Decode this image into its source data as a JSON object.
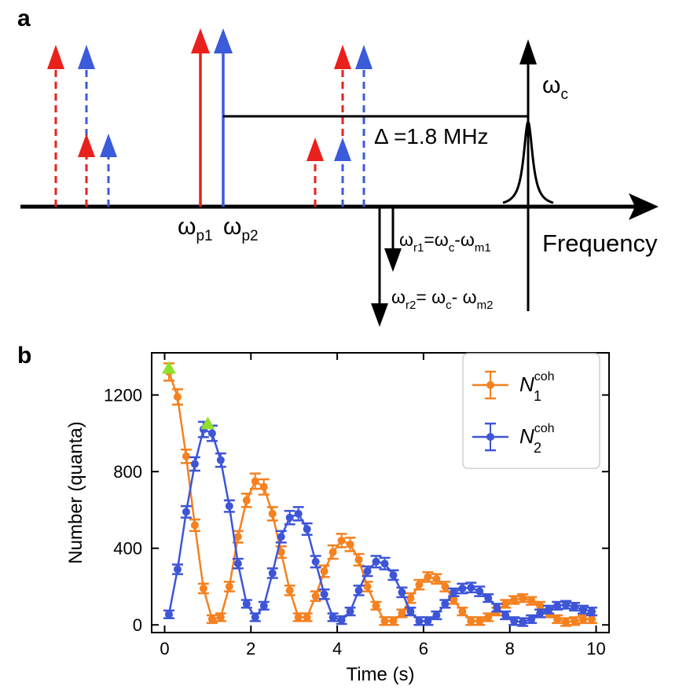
{
  "panel_a": {
    "label": "a",
    "axis_label": "Frequency",
    "cavity_label": "ω",
    "cavity_sub": "c",
    "pump1": "ω",
    "pump1_sub": "p1",
    "pump2": "ω",
    "pump2_sub": "p2",
    "detuning": "Δ =1.8 MHz",
    "r1_pre": "ω",
    "r1_sub": "r1",
    "r1_mid": "=ω",
    "r1_sub2": "c",
    "r1_mid2": "-ω",
    "r1_sub3": "m1",
    "r2_pre": "ω",
    "r2_sub": "r2",
    "r2_mid": "= ω",
    "r2_sub2": "c",
    "r2_mid2": "- ω",
    "r2_sub3": "m2",
    "colors": {
      "red": "#e8211c",
      "blue": "#3b5bdb",
      "black": "#000000"
    }
  },
  "panel_b": {
    "label": "b"
  },
  "chart_data": {
    "type": "line",
    "xlabel": "Time (s)",
    "ylabel": "Number (quanta)",
    "xlim": [
      -0.3,
      10.3
    ],
    "ylim": [
      -40,
      1420
    ],
    "xticks": [
      0,
      2,
      4,
      6,
      8,
      10
    ],
    "yticks": [
      0,
      400,
      800,
      1200
    ],
    "legend_position": "top-right",
    "series": [
      {
        "name": "N",
        "sub": "1",
        "sup": "coh",
        "color": "#f5811f",
        "x": [
          0.1,
          0.3,
          0.5,
          0.7,
          0.9,
          1.1,
          1.3,
          1.5,
          1.7,
          1.9,
          2.1,
          2.3,
          2.5,
          2.7,
          2.9,
          3.1,
          3.3,
          3.5,
          3.7,
          3.9,
          4.1,
          4.3,
          4.5,
          4.7,
          4.9,
          5.1,
          5.3,
          5.5,
          5.7,
          5.9,
          6.1,
          6.3,
          6.5,
          6.7,
          6.9,
          7.1,
          7.3,
          7.5,
          7.7,
          7.9,
          8.1,
          8.3,
          8.5,
          8.7,
          8.9,
          9.1,
          9.3,
          9.5,
          9.7,
          9.9
        ],
        "y": [
          1320,
          1190,
          880,
          520,
          190,
          30,
          40,
          200,
          460,
          650,
          750,
          720,
          580,
          380,
          180,
          40,
          40,
          150,
          280,
          380,
          440,
          420,
          340,
          200,
          100,
          20,
          20,
          60,
          140,
          210,
          250,
          240,
          200,
          130,
          70,
          20,
          20,
          40,
          70,
          110,
          130,
          140,
          125,
          100,
          60,
          30,
          15,
          20,
          30,
          30
        ],
        "err": [
          45,
          40,
          35,
          30,
          25,
          20,
          20,
          25,
          30,
          35,
          40,
          40,
          35,
          30,
          25,
          20,
          20,
          25,
          30,
          35,
          35,
          35,
          30,
          25,
          20,
          20,
          20,
          20,
          25,
          25,
          25,
          25,
          25,
          20,
          20,
          20,
          20,
          20,
          20,
          20,
          20,
          20,
          20,
          20,
          20,
          20,
          20,
          20,
          20,
          20
        ]
      },
      {
        "name": "N",
        "sub": "2",
        "sup": "coh",
        "color": "#3d55d6",
        "x": [
          0.1,
          0.3,
          0.5,
          0.7,
          0.9,
          1.1,
          1.3,
          1.5,
          1.7,
          1.9,
          2.1,
          2.3,
          2.5,
          2.7,
          2.9,
          3.1,
          3.3,
          3.5,
          3.7,
          3.9,
          4.1,
          4.3,
          4.5,
          4.7,
          4.9,
          5.1,
          5.3,
          5.5,
          5.7,
          5.9,
          6.1,
          6.3,
          6.5,
          6.7,
          6.9,
          7.1,
          7.3,
          7.5,
          7.7,
          7.9,
          8.1,
          8.3,
          8.5,
          8.7,
          8.9,
          9.1,
          9.3,
          9.5,
          9.7,
          9.9
        ],
        "y": [
          55,
          290,
          590,
          840,
          1020,
          1000,
          860,
          620,
          320,
          110,
          40,
          100,
          270,
          460,
          560,
          580,
          500,
          330,
          160,
          40,
          25,
          70,
          180,
          280,
          330,
          320,
          260,
          170,
          70,
          20,
          20,
          50,
          110,
          170,
          190,
          195,
          175,
          140,
          90,
          50,
          20,
          15,
          30,
          60,
          80,
          100,
          105,
          95,
          80,
          70
        ],
        "err": [
          20,
          25,
          30,
          35,
          40,
          40,
          35,
          30,
          25,
          20,
          20,
          20,
          25,
          30,
          35,
          35,
          30,
          30,
          25,
          20,
          20,
          20,
          25,
          25,
          30,
          30,
          25,
          25,
          20,
          20,
          20,
          20,
          20,
          20,
          25,
          25,
          25,
          20,
          20,
          20,
          20,
          20,
          20,
          20,
          20,
          20,
          20,
          20,
          20,
          20
        ]
      }
    ],
    "markers": [
      {
        "x": 0.1,
        "y": 1340,
        "color": "#8ee02a"
      },
      {
        "x": 1.0,
        "y": 1050,
        "color": "#8ee02a"
      }
    ]
  }
}
